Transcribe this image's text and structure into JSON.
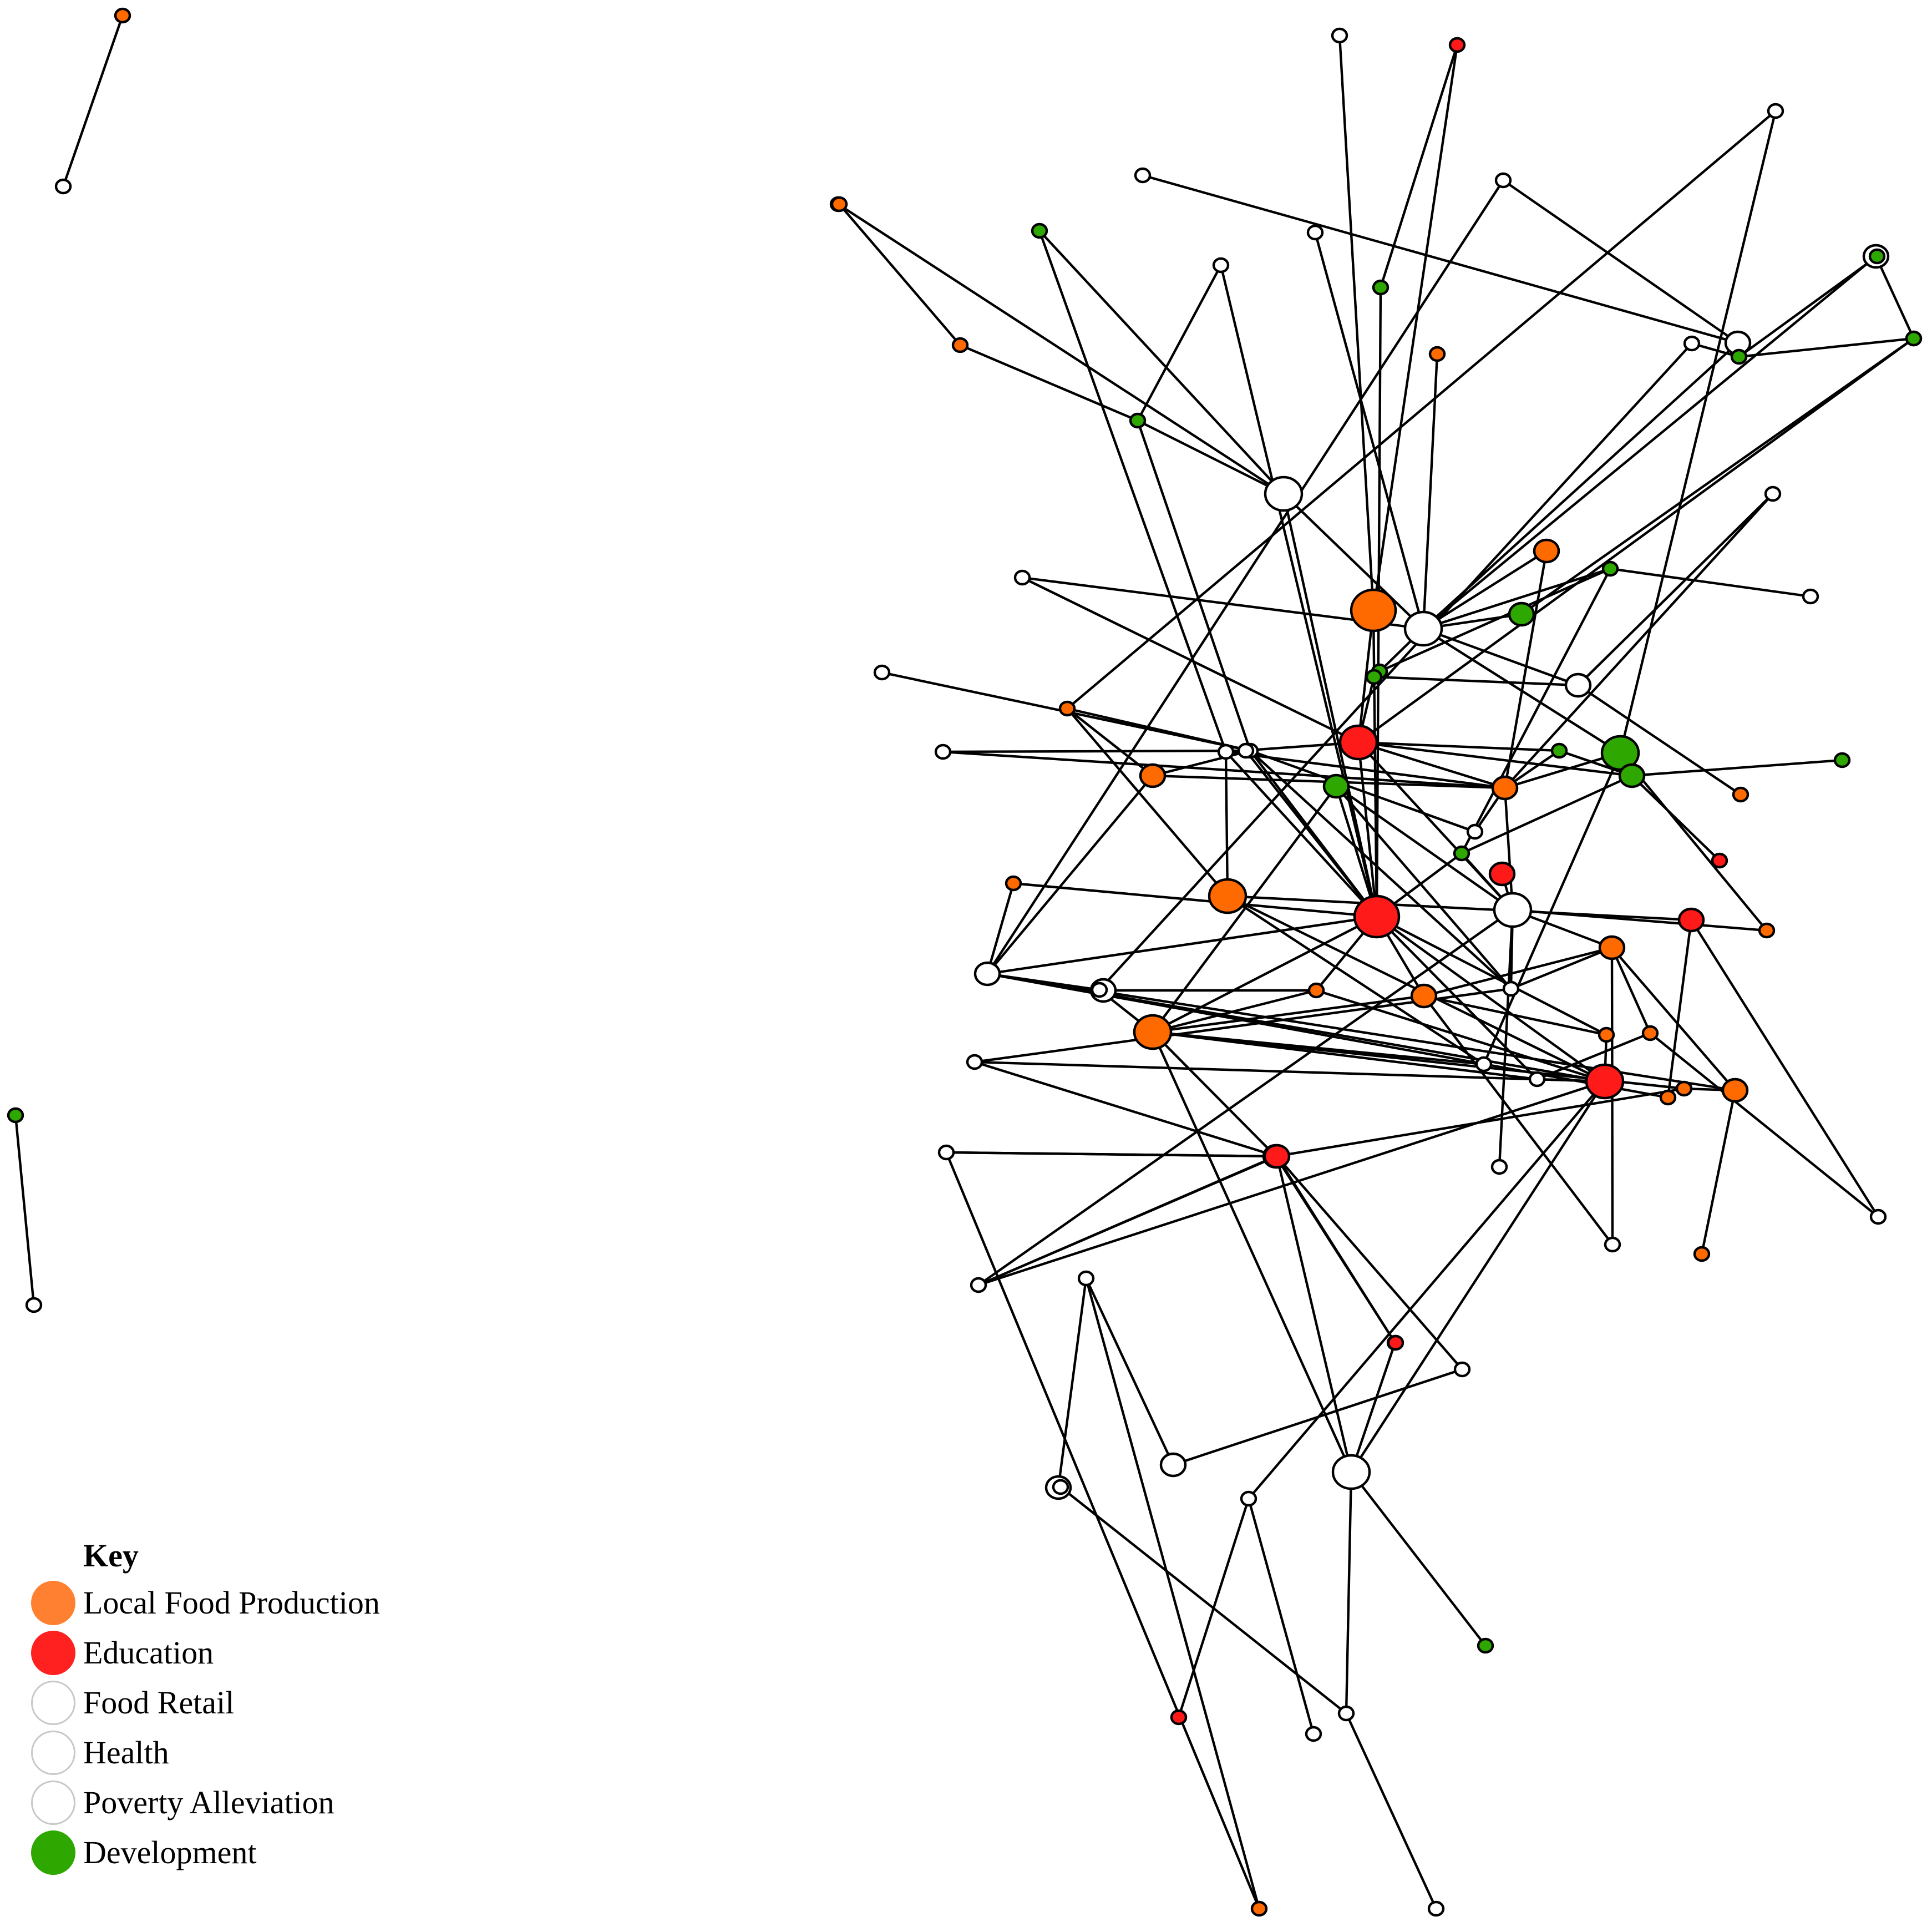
{
  "colors": {
    "local_food_production": "#ff6a00",
    "education": "#ff1a1a",
    "white": "#ffffff",
    "development": "#2ea800",
    "edge": "#000000"
  },
  "key": {
    "title": "Key",
    "items": [
      {
        "label": "Local Food Production",
        "color": "#ff8030"
      },
      {
        "label": "Education",
        "color": "#ff2020"
      },
      {
        "label": "Food Retail",
        "color": "#ffffff"
      },
      {
        "label": "Health",
        "color": "#ffffff"
      },
      {
        "label": "Poverty Alleviation",
        "color": "#ffffff"
      },
      {
        "label": "Development",
        "color": "#2ea800"
      }
    ]
  },
  "network": {
    "nodes": [
      {
        "id": "iso1a",
        "cat": "lfp",
        "size": "s"
      },
      {
        "id": "iso1b",
        "cat": "white",
        "size": "s"
      },
      {
        "id": "iso2a",
        "cat": "dev",
        "size": "s"
      },
      {
        "id": "iso2b",
        "cat": "white",
        "size": "s"
      },
      {
        "id": "t1",
        "cat": "white",
        "size": "s"
      },
      {
        "id": "t2",
        "cat": "edu",
        "size": "s"
      },
      {
        "id": "t3",
        "cat": "white",
        "size": "s"
      },
      {
        "id": "t4",
        "cat": "white",
        "size": "s"
      },
      {
        "id": "t5",
        "cat": "edu",
        "size": "s"
      },
      {
        "id": "t6",
        "cat": "white",
        "size": "s"
      },
      {
        "id": "t7",
        "cat": "dev",
        "size": "s"
      },
      {
        "id": "t8",
        "cat": "white",
        "size": "s"
      },
      {
        "id": "t9",
        "cat": "lfp",
        "size": "s"
      },
      {
        "id": "t10",
        "cat": "lfp",
        "size": "s"
      },
      {
        "id": "t11",
        "cat": "dev",
        "size": "s"
      },
      {
        "id": "t12",
        "cat": "white",
        "size": "s"
      },
      {
        "id": "t13",
        "cat": "white",
        "size": "m"
      },
      {
        "id": "t14",
        "cat": "white",
        "size": "m"
      },
      {
        "id": "t15",
        "cat": "edu",
        "size": "s"
      },
      {
        "id": "t16",
        "cat": "lfp",
        "size": "s"
      },
      {
        "id": "t17",
        "cat": "white",
        "size": "l"
      },
      {
        "id": "t18",
        "cat": "dev",
        "size": "s"
      },
      {
        "id": "r1",
        "cat": "white",
        "size": "s"
      },
      {
        "id": "r2",
        "cat": "dev",
        "size": "s"
      },
      {
        "id": "r3",
        "cat": "dev",
        "size": "s"
      },
      {
        "id": "r4",
        "cat": "dev",
        "size": "s"
      },
      {
        "id": "r5",
        "cat": "white",
        "size": "s"
      },
      {
        "id": "r6",
        "cat": "dev",
        "size": "s"
      },
      {
        "id": "r7",
        "cat": "white",
        "size": "s"
      },
      {
        "id": "r8",
        "cat": "dev",
        "size": "s"
      },
      {
        "id": "c1",
        "cat": "lfp",
        "size": "m"
      },
      {
        "id": "c2",
        "cat": "lfp",
        "size": "xl"
      },
      {
        "id": "c3",
        "cat": "white",
        "size": "l"
      },
      {
        "id": "c4",
        "cat": "dev",
        "size": "m"
      },
      {
        "id": "c5",
        "cat": "white",
        "size": "s"
      },
      {
        "id": "c6",
        "cat": "dev",
        "size": "s"
      },
      {
        "id": "c7",
        "cat": "white",
        "size": "m"
      },
      {
        "id": "c8",
        "cat": "white",
        "size": "s"
      },
      {
        "id": "c9",
        "cat": "edu",
        "size": "l"
      },
      {
        "id": "c10",
        "cat": "dev",
        "size": "l"
      },
      {
        "id": "c11",
        "cat": "lfp",
        "size": "m"
      },
      {
        "id": "c12",
        "cat": "dev",
        "size": "s"
      },
      {
        "id": "c13",
        "cat": "dev",
        "size": "m"
      },
      {
        "id": "c14",
        "cat": "dev",
        "size": "s"
      },
      {
        "id": "c15",
        "cat": "lfp",
        "size": "s"
      },
      {
        "id": "c16",
        "cat": "white",
        "size": "s"
      },
      {
        "id": "c17",
        "cat": "white",
        "size": "s"
      },
      {
        "id": "c18",
        "cat": "lfp",
        "size": "s"
      },
      {
        "id": "c19",
        "cat": "lfp",
        "size": "m"
      },
      {
        "id": "c20",
        "cat": "white",
        "size": "s"
      },
      {
        "id": "c21",
        "cat": "white",
        "size": "s"
      },
      {
        "id": "c22",
        "cat": "dev",
        "size": "m"
      },
      {
        "id": "c23",
        "cat": "edu",
        "size": "s"
      },
      {
        "id": "c24",
        "cat": "edu",
        "size": "xl"
      },
      {
        "id": "c25",
        "cat": "white",
        "size": "l"
      },
      {
        "id": "c26",
        "cat": "lfp",
        "size": "s"
      },
      {
        "id": "c27",
        "cat": "edu",
        "size": "m"
      },
      {
        "id": "c28",
        "cat": "lfp",
        "size": "l"
      },
      {
        "id": "c29",
        "cat": "white",
        "size": "s"
      },
      {
        "id": "c30",
        "cat": "dev",
        "size": "s"
      },
      {
        "id": "c31",
        "cat": "lfp",
        "size": "s"
      },
      {
        "id": "c32",
        "cat": "white",
        "size": "m"
      },
      {
        "id": "c33",
        "cat": "edu",
        "size": "m"
      },
      {
        "id": "c34",
        "cat": "lfp",
        "size": "m"
      },
      {
        "id": "c35",
        "cat": "lfp",
        "size": "m"
      },
      {
        "id": "c36",
        "cat": "white",
        "size": "s"
      },
      {
        "id": "c37",
        "cat": "white",
        "size": "m"
      },
      {
        "id": "c38",
        "cat": "lfp",
        "size": "s"
      },
      {
        "id": "c39",
        "cat": "lfp",
        "size": "m"
      },
      {
        "id": "c40",
        "cat": "lfp",
        "size": "s"
      },
      {
        "id": "c41",
        "cat": "lfp",
        "size": "s"
      },
      {
        "id": "c42",
        "cat": "edu",
        "size": "l"
      },
      {
        "id": "c43",
        "cat": "white",
        "size": "s"
      },
      {
        "id": "c44",
        "cat": "white",
        "size": "s"
      },
      {
        "id": "c45",
        "cat": "lfp",
        "size": "s"
      },
      {
        "id": "c46",
        "cat": "white",
        "size": "s"
      },
      {
        "id": "c47",
        "cat": "lfp",
        "size": "l"
      },
      {
        "id": "c48",
        "cat": "white",
        "size": "s"
      },
      {
        "id": "c49",
        "cat": "lfp",
        "size": "s"
      },
      {
        "id": "c50",
        "cat": "lfp",
        "size": "s"
      },
      {
        "id": "c51",
        "cat": "lfp",
        "size": "m"
      },
      {
        "id": "c52",
        "cat": "white",
        "size": "s"
      },
      {
        "id": "c53",
        "cat": "white",
        "size": "s"
      },
      {
        "id": "c54",
        "cat": "white",
        "size": "s"
      },
      {
        "id": "c55",
        "cat": "white",
        "size": "s"
      },
      {
        "id": "c56",
        "cat": "lfp",
        "size": "s"
      },
      {
        "id": "c57",
        "cat": "edu",
        "size": "s"
      },
      {
        "id": "c58",
        "cat": "edu",
        "size": "s"
      },
      {
        "id": "c59",
        "cat": "edu",
        "size": "m"
      },
      {
        "id": "c60",
        "cat": "white",
        "size": "s"
      },
      {
        "id": "c61",
        "cat": "white",
        "size": "s"
      },
      {
        "id": "c62",
        "cat": "white",
        "size": "s"
      },
      {
        "id": "b1",
        "cat": "white",
        "size": "m"
      },
      {
        "id": "b2",
        "cat": "white",
        "size": "m"
      },
      {
        "id": "b3",
        "cat": "white",
        "size": "l"
      },
      {
        "id": "b4",
        "cat": "white",
        "size": "s"
      },
      {
        "id": "b5",
        "cat": "dev",
        "size": "s"
      },
      {
        "id": "b6",
        "cat": "edu",
        "size": "s"
      },
      {
        "id": "b7",
        "cat": "white",
        "size": "s"
      },
      {
        "id": "b8",
        "cat": "white",
        "size": "s"
      },
      {
        "id": "b9",
        "cat": "white",
        "size": "s"
      },
      {
        "id": "b10",
        "cat": "white",
        "size": "s"
      }
    ],
    "edges": [
      [
        "iso1a",
        "iso1b"
      ],
      [
        "iso2a",
        "iso2b"
      ],
      [
        "t1",
        "c2"
      ],
      [
        "t2",
        "t11"
      ],
      [
        "t2",
        "c2"
      ],
      [
        "t3",
        "c10"
      ],
      [
        "t3",
        "c18"
      ],
      [
        "t4",
        "t13"
      ],
      [
        "t5",
        "t17"
      ],
      [
        "t6",
        "t13"
      ],
      [
        "t6",
        "c32"
      ],
      [
        "t7",
        "t17"
      ],
      [
        "t7",
        "c20"
      ],
      [
        "t8",
        "c3"
      ],
      [
        "t9",
        "t10"
      ],
      [
        "t10",
        "t18"
      ],
      [
        "t11",
        "c24"
      ],
      [
        "t12",
        "t18"
      ],
      [
        "t12",
        "c24"
      ],
      [
        "t13",
        "c3"
      ],
      [
        "t14",
        "c3"
      ],
      [
        "t14",
        "t15"
      ],
      [
        "t15",
        "c4"
      ],
      [
        "t15",
        "c9"
      ],
      [
        "t17",
        "c3"
      ],
      [
        "t17",
        "c24"
      ],
      [
        "t17",
        "t18"
      ],
      [
        "t16",
        "c3"
      ],
      [
        "t18",
        "c17"
      ],
      [
        "r1",
        "c48"
      ],
      [
        "r1",
        "r2"
      ],
      [
        "r2",
        "r3"
      ],
      [
        "r2",
        "r4"
      ],
      [
        "r5",
        "c7"
      ],
      [
        "r5",
        "c11"
      ],
      [
        "r6",
        "c3"
      ],
      [
        "r6",
        "r7"
      ],
      [
        "r6",
        "r8"
      ],
      [
        "r6",
        "c30"
      ],
      [
        "c1",
        "c11"
      ],
      [
        "c1",
        "c3"
      ],
      [
        "c2",
        "c9"
      ],
      [
        "c2",
        "c24"
      ],
      [
        "c3",
        "c4"
      ],
      [
        "c3",
        "c5"
      ],
      [
        "c3",
        "c7"
      ],
      [
        "c3",
        "c6"
      ],
      [
        "c3",
        "c10"
      ],
      [
        "c5",
        "c9"
      ],
      [
        "c6",
        "c7"
      ],
      [
        "c6",
        "c9"
      ],
      [
        "c7",
        "c15"
      ],
      [
        "c8",
        "c17"
      ],
      [
        "c9",
        "c11"
      ],
      [
        "c9",
        "c12"
      ],
      [
        "c9",
        "c24"
      ],
      [
        "c9",
        "c13"
      ],
      [
        "c9",
        "c20"
      ],
      [
        "c9",
        "c25"
      ],
      [
        "c10",
        "c11"
      ],
      [
        "c10",
        "c26"
      ],
      [
        "c10",
        "c43"
      ],
      [
        "c11",
        "c12"
      ],
      [
        "c11",
        "c16"
      ],
      [
        "c11",
        "c19"
      ],
      [
        "c11",
        "c20"
      ],
      [
        "c11",
        "c21"
      ],
      [
        "c11",
        "c25"
      ],
      [
        "c12",
        "c13"
      ],
      [
        "c13",
        "c14"
      ],
      [
        "c13",
        "c23"
      ],
      [
        "c13",
        "c30"
      ],
      [
        "c16",
        "c17"
      ],
      [
        "c17",
        "c18"
      ],
      [
        "c17",
        "c19"
      ],
      [
        "c17",
        "c20"
      ],
      [
        "c17",
        "c21"
      ],
      [
        "c17",
        "c24"
      ],
      [
        "c17",
        "c36"
      ],
      [
        "c18",
        "c19"
      ],
      [
        "c18",
        "c28"
      ],
      [
        "c19",
        "c32"
      ],
      [
        "c20",
        "c24"
      ],
      [
        "c20",
        "c28"
      ],
      [
        "c22",
        "c24"
      ],
      [
        "c22",
        "c36"
      ],
      [
        "c22",
        "c47"
      ],
      [
        "c22",
        "c25"
      ],
      [
        "c24",
        "c29"
      ],
      [
        "c24",
        "c30"
      ],
      [
        "c24",
        "c32"
      ],
      [
        "c24",
        "c35"
      ],
      [
        "c24",
        "c40"
      ],
      [
        "c24",
        "c31"
      ],
      [
        "c24",
        "c42"
      ],
      [
        "c24",
        "c46"
      ],
      [
        "c24",
        "c47"
      ],
      [
        "c24",
        "c38"
      ],
      [
        "c25",
        "c26"
      ],
      [
        "c25",
        "c27"
      ],
      [
        "c25",
        "c30"
      ],
      [
        "c25",
        "c34"
      ],
      [
        "c25",
        "c36"
      ],
      [
        "c25",
        "c55"
      ],
      [
        "c25",
        "c53"
      ],
      [
        "c28",
        "c42"
      ],
      [
        "c28",
        "c33"
      ],
      [
        "c28",
        "c43"
      ],
      [
        "c31",
        "c32"
      ],
      [
        "c32",
        "c37"
      ],
      [
        "c32",
        "c41"
      ],
      [
        "c32",
        "c42"
      ],
      [
        "c32",
        "c39"
      ],
      [
        "c33",
        "c41"
      ],
      [
        "c33",
        "c44"
      ],
      [
        "c34",
        "c35"
      ],
      [
        "c34",
        "c36"
      ],
      [
        "c34",
        "c39"
      ],
      [
        "c34",
        "c45"
      ],
      [
        "c35",
        "c47"
      ],
      [
        "c35",
        "c40"
      ],
      [
        "c35",
        "c62"
      ],
      [
        "c36",
        "c54"
      ],
      [
        "c37",
        "c38"
      ],
      [
        "c38",
        "c47"
      ],
      [
        "c38",
        "c42"
      ],
      [
        "c39",
        "c49"
      ],
      [
        "c39",
        "c50"
      ],
      [
        "c40",
        "c42"
      ],
      [
        "c42",
        "c46"
      ],
      [
        "c43",
        "c47"
      ],
      [
        "c44",
        "c45"
      ],
      [
        "c45",
        "c46"
      ],
      [
        "c46",
        "c47"
      ],
      [
        "c47",
        "c48"
      ],
      [
        "c47",
        "c49"
      ],
      [
        "c47",
        "c51"
      ],
      [
        "c49",
        "c51"
      ],
      [
        "c51",
        "c52"
      ],
      [
        "c51",
        "c53"
      ],
      [
        "c51",
        "c59"
      ],
      [
        "c51",
        "c57"
      ],
      [
        "c52",
        "c59"
      ],
      [
        "c52",
        "c56"
      ],
      [
        "c53",
        "c59"
      ],
      [
        "c53",
        "c42"
      ],
      [
        "c54",
        "c59"
      ],
      [
        "c59",
        "c61"
      ],
      [
        "c60",
        "b1"
      ],
      [
        "c56",
        "c60"
      ],
      [
        "c60",
        "b2"
      ],
      [
        "b1",
        "c61"
      ],
      [
        "b2",
        "b9"
      ],
      [
        "c59",
        "c57"
      ],
      [
        "c57",
        "b3"
      ],
      [
        "c59",
        "b3"
      ],
      [
        "c42",
        "b3"
      ],
      [
        "c42",
        "b4"
      ],
      [
        "b3",
        "b5"
      ],
      [
        "b3",
        "b8"
      ],
      [
        "b4",
        "b6"
      ],
      [
        "b4",
        "b7"
      ],
      [
        "b8",
        "b9"
      ],
      [
        "b8",
        "b10"
      ],
      [
        "c34",
        "c62"
      ],
      [
        "c47",
        "b3"
      ],
      [
        "c54",
        "c42"
      ]
    ]
  }
}
